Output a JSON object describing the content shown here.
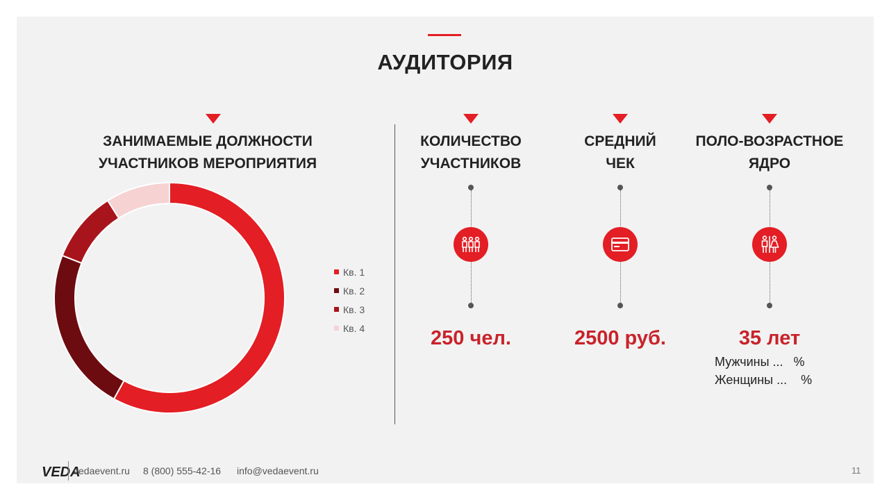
{
  "title": "АУДИТОРИЯ",
  "left_section": {
    "heading_line1": "ЗАНИМАЕМЫЕ ДОЛЖНОСТИ",
    "heading_line2": "УЧАСТНИКОВ МЕРОПРИЯТИЯ"
  },
  "chart_data": {
    "type": "pie",
    "donut": true,
    "categories": [
      "Кв. 1",
      "Кв. 2",
      "Кв. 3",
      "Кв. 4"
    ],
    "values": [
      58,
      23,
      10,
      9
    ],
    "colors": [
      "#e31e24",
      "#6d0c10",
      "#a8141b",
      "#f6d2d3"
    ],
    "legend_position": "right"
  },
  "metrics": [
    {
      "heading_line1": "КОЛИЧЕСТВО",
      "heading_line2": "УЧАСТНИКОВ",
      "icon": "people-icon",
      "value": "250 чел."
    },
    {
      "heading_line1": "СРЕДНИЙ",
      "heading_line2": "ЧЕК",
      "icon": "credit-card-icon",
      "value": "2500 руб."
    },
    {
      "heading_line1": "ПОЛО-ВОЗРАСТНОЕ",
      "heading_line2": "ЯДРО",
      "icon": "male-female-icon",
      "value": "35 лет",
      "sub_lines": [
        "Мужчины ...   %",
        "Женщины ...    %"
      ]
    }
  ],
  "footer": {
    "logo": "VEDA",
    "website": "vedaevent.ru",
    "phone": "8 (800) 555-42-16",
    "email": "info@vedaevent.ru",
    "page_number": "11"
  },
  "colors": {
    "accent": "#e31e24",
    "value_text": "#c8232b",
    "background": "#f2f2f2"
  }
}
